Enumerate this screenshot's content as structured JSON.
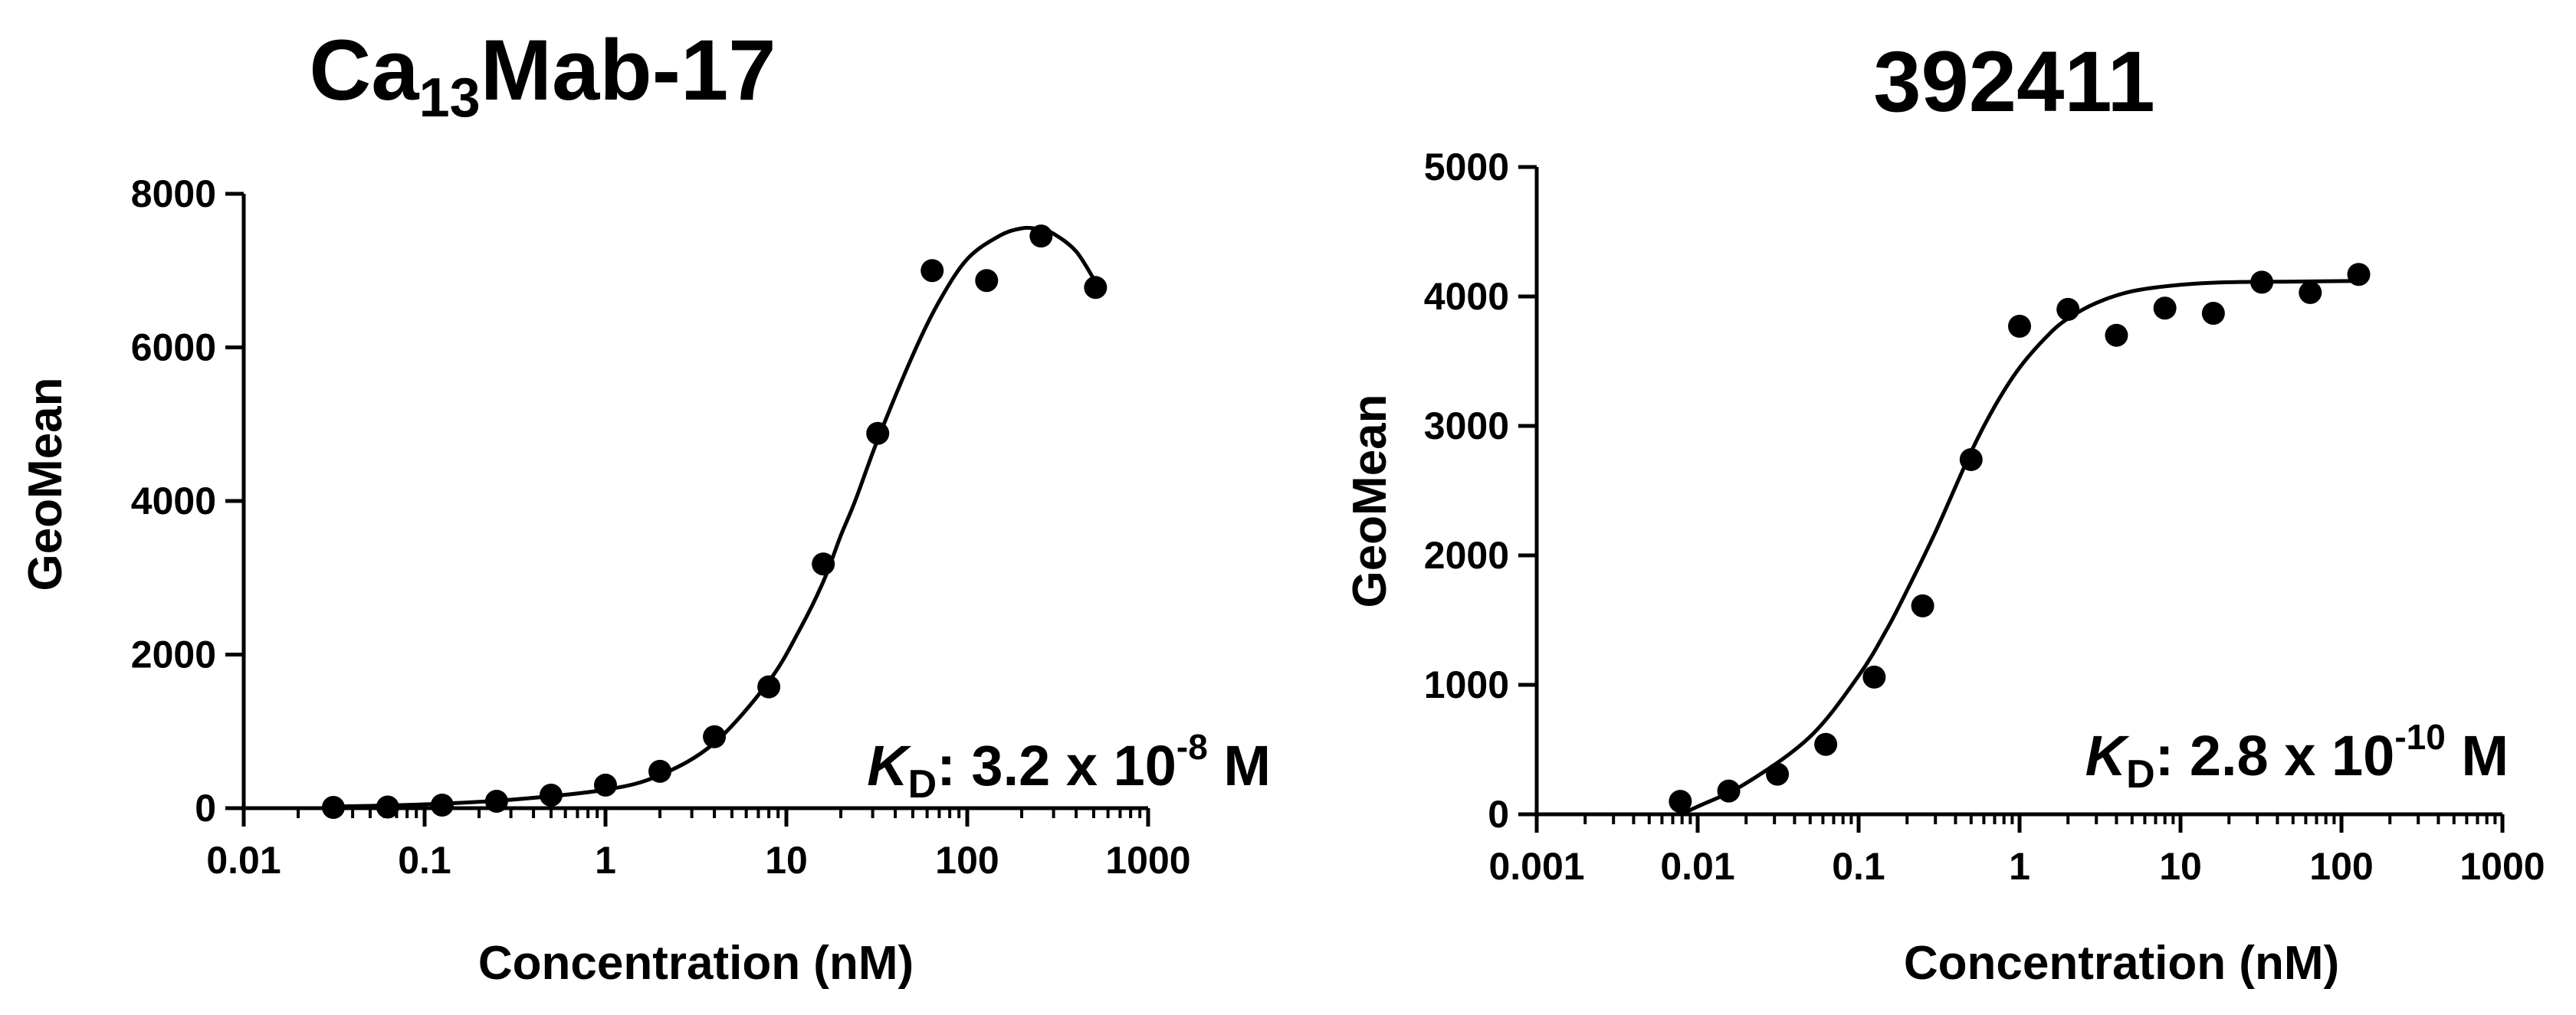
{
  "chart_data": [
    {
      "type": "scatter",
      "title": {
        "prefix": "Ca",
        "subscript": "13",
        "suffix": "Mab-17"
      },
      "xlabel": "Concentration (nM)",
      "ylabel": "GeoMean",
      "xscale": "log",
      "xlim": [
        0.01,
        1000
      ],
      "ylim": [
        0,
        8000
      ],
      "xticks": [
        0.01,
        0.1,
        1,
        10,
        100,
        1000
      ],
      "xtick_labels": [
        "0.01",
        "0.1",
        "1",
        "10",
        "100",
        "1000"
      ],
      "yticks": [
        0,
        2000,
        4000,
        6000,
        8000
      ],
      "ytick_labels": [
        "0",
        "2000",
        "4000",
        "6000",
        "8000"
      ],
      "grid": false,
      "series": [
        {
          "x": [
            0.0313,
            0.0625,
            0.125,
            0.25,
            0.5,
            1,
            2,
            4,
            8,
            16,
            32,
            64,
            128,
            256,
            512
          ],
          "y": [
            10,
            15,
            40,
            90,
            170,
            300,
            480,
            930,
            1580,
            3180,
            4880,
            7000,
            6870,
            7450,
            6780
          ],
          "color": "#000000"
        }
      ],
      "fit": {
        "x": [
          0.03,
          0.1,
          0.3,
          1,
          2,
          4,
          8,
          12,
          16,
          20,
          24,
          32,
          50,
          70,
          100,
          150,
          200,
          250,
          300,
          400,
          512
        ],
        "y": [
          20,
          50,
          110,
          240,
          430,
          850,
          1650,
          2350,
          2950,
          3550,
          4000,
          4800,
          5900,
          6600,
          7150,
          7450,
          7550,
          7540,
          7480,
          7250,
          6850
        ]
      },
      "annotation": {
        "symbol": "K",
        "subscript": "D",
        "text": ": 3.2 x 10",
        "superscript": "-8",
        "unit": " M"
      }
    },
    {
      "type": "scatter",
      "title": {
        "prefix": "392411",
        "subscript": "",
        "suffix": ""
      },
      "xlabel": "Concentration (nM)",
      "ylabel": "GeoMean",
      "xscale": "log",
      "xlim": [
        0.001,
        1000
      ],
      "ylim": [
        0,
        5000
      ],
      "xticks": [
        0.001,
        0.01,
        0.1,
        1,
        10,
        100,
        1000
      ],
      "xtick_labels": [
        "0.001",
        "0.01",
        "0.1",
        "1",
        "10",
        "100",
        "1000"
      ],
      "yticks": [
        0,
        1000,
        2000,
        3000,
        4000,
        5000
      ],
      "ytick_labels": [
        "0",
        "1000",
        "2000",
        "3000",
        "4000",
        "5000"
      ],
      "grid": false,
      "series": [
        {
          "x": [
            0.0078,
            0.0156,
            0.0313,
            0.0625,
            0.125,
            0.25,
            0.5,
            1,
            2,
            4,
            8,
            16,
            32,
            64,
            128
          ],
          "y": [
            100,
            180,
            310,
            540,
            1060,
            1610,
            2740,
            3770,
            3900,
            3700,
            3910,
            3870,
            4110,
            4030,
            4170
          ],
          "color": "#000000"
        }
      ],
      "fit": {
        "x": [
          0.0078,
          0.01,
          0.02,
          0.05,
          0.1,
          0.15,
          0.2,
          0.3,
          0.5,
          0.7,
          1,
          1.5,
          2,
          3,
          5,
          10,
          20,
          50,
          128
        ],
        "y": [
          0,
          60,
          240,
          600,
          1070,
          1430,
          1730,
          2180,
          2800,
          3150,
          3450,
          3700,
          3830,
          3950,
          4040,
          4090,
          4110,
          4115,
          4120
        ]
      },
      "annotation": {
        "symbol": "K",
        "subscript": "D",
        "text": ": 2.8 x 10",
        "superscript": "-10",
        "unit": " M"
      }
    }
  ]
}
